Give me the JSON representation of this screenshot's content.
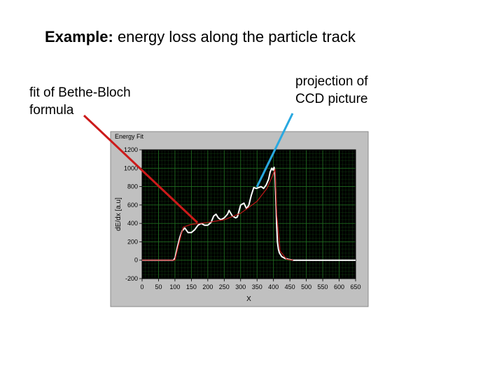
{
  "title": {
    "bold": "Example:",
    "rest": " energy loss along the particle track"
  },
  "annotations": {
    "left": {
      "line1": "fit of Bethe-Bloch",
      "line2": "formula",
      "arrow_color": "#cc1a1a"
    },
    "right": {
      "line1": "projection of",
      "line2": "CCD picture",
      "arrow_color": "#29a8e0"
    }
  },
  "colors": {
    "panel": "#c0c0c0",
    "plot_bg": "#000000",
    "grid": "#1f6b1f",
    "measured": "#ffffff",
    "fit": "#c01818"
  },
  "chart_data": {
    "type": "line",
    "title": "Energy Fit",
    "xlabel": "X",
    "ylabel": "dE/dx [a.u]",
    "xlim": [
      0,
      650
    ],
    "ylim": [
      -200,
      1200
    ],
    "x_ticks": [
      0,
      50,
      100,
      150,
      200,
      250,
      300,
      350,
      400,
      450,
      500,
      550,
      600,
      650
    ],
    "y_ticks": [
      -200,
      0,
      200,
      400,
      600,
      800,
      1000,
      1200
    ],
    "grid": true,
    "series": [
      {
        "role": "measured",
        "x": [
          0,
          95,
          100,
          108,
          115,
          122,
          130,
          140,
          150,
          160,
          170,
          180,
          190,
          200,
          210,
          218,
          225,
          232,
          240,
          250,
          260,
          265,
          275,
          285,
          290,
          300,
          310,
          318,
          325,
          332,
          340,
          348,
          355,
          362,
          370,
          378,
          385,
          390,
          395,
          398,
          402,
          405,
          408,
          410,
          412,
          415,
          418,
          425,
          435,
          445,
          460,
          500,
          650
        ],
        "y": [
          0,
          0,
          20,
          150,
          250,
          320,
          350,
          300,
          300,
          330,
          380,
          400,
          380,
          380,
          410,
          480,
          500,
          460,
          440,
          460,
          500,
          540,
          480,
          460,
          470,
          600,
          620,
          560,
          600,
          700,
          790,
          780,
          790,
          800,
          780,
          820,
          880,
          960,
          1000,
          980,
          1010,
          900,
          600,
          350,
          200,
          120,
          80,
          40,
          20,
          10,
          0,
          0,
          0
        ]
      },
      {
        "role": "fit",
        "x": [
          0,
          100,
          110,
          125,
          150,
          200,
          250,
          300,
          350,
          380,
          395,
          405,
          410,
          420,
          440,
          460
        ],
        "y": [
          0,
          0,
          150,
          360,
          390,
          410,
          440,
          510,
          640,
          780,
          900,
          990,
          500,
          100,
          10,
          0
        ]
      }
    ]
  }
}
